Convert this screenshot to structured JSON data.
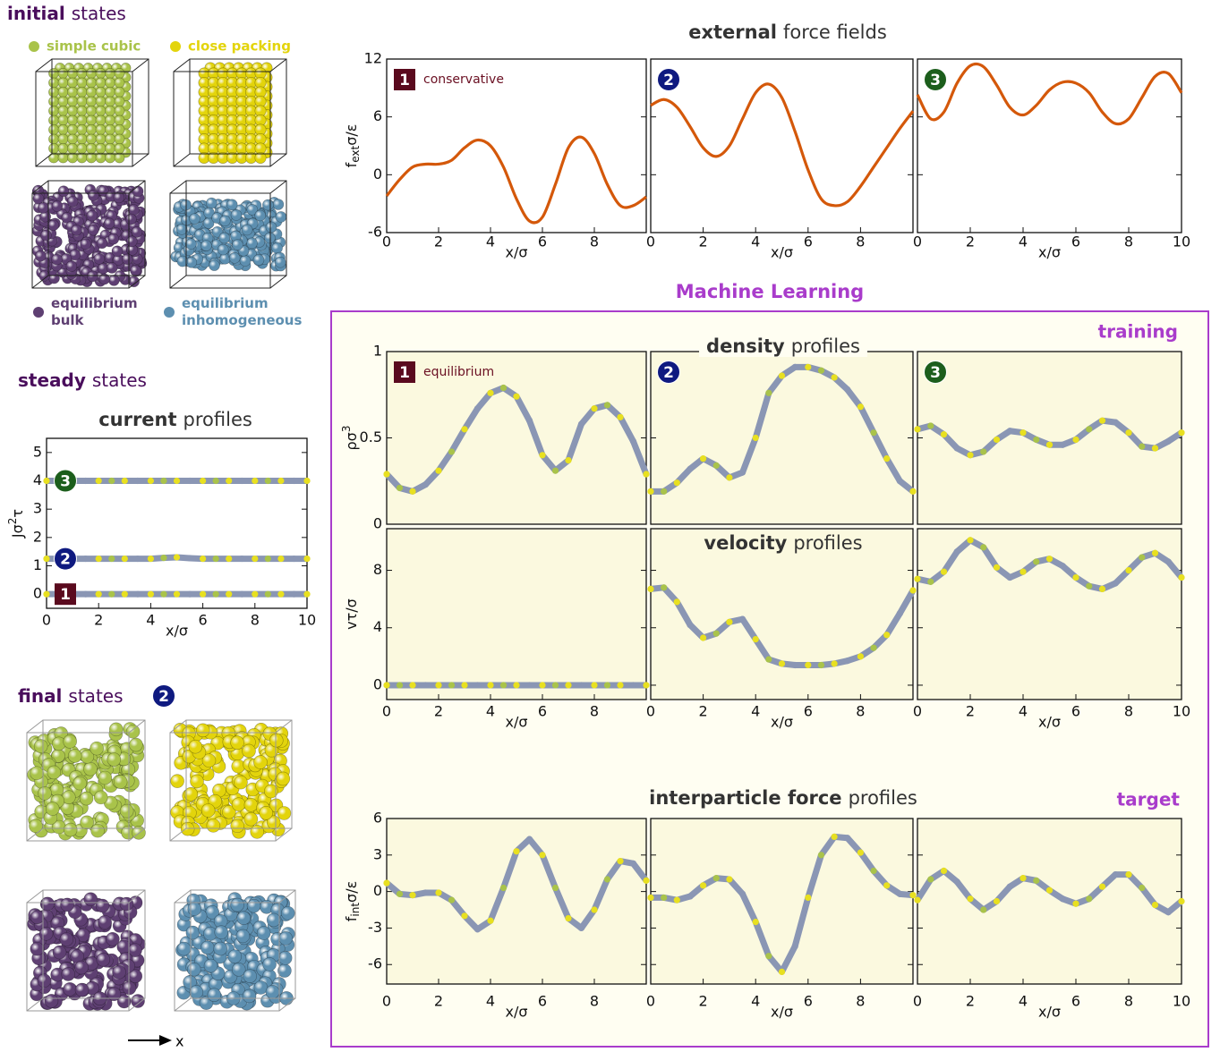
{
  "initial": {
    "title_bold": "initial",
    "title_rest": "states",
    "items": [
      {
        "label": [
          "simple cubic"
        ],
        "color": "#a9c34a"
      },
      {
        "label": [
          "close packing"
        ],
        "color": "#e3d40c"
      },
      {
        "label": [
          "equilibrium",
          "bulk"
        ],
        "color": "#5e3f72"
      },
      {
        "label": [
          "equilibrium",
          "inhomogeneous"
        ],
        "color": "#5d8fb0"
      }
    ]
  },
  "steady": {
    "title_bold": "steady",
    "title_rest": "states"
  },
  "final": {
    "title_bold": "final",
    "title_rest": "states",
    "badge": {
      "text": "2",
      "shape": "circle",
      "color": "#0f1a80"
    }
  },
  "axis_arrow": "x",
  "ml_box": {
    "title": "Machine Learning",
    "training": "training",
    "target": "target",
    "color": "#a93ccb"
  },
  "chart_data": [
    {
      "type": "line",
      "title_bold": "current",
      "title_rest": "profiles",
      "xlabel": "x/σ",
      "ylabel": [
        {
          "text": "Jσ"
        },
        {
          "text": "2",
          "shift": "super"
        },
        {
          "text": "τ"
        }
      ],
      "xlim": [
        0,
        10
      ],
      "ylim": [
        -0.5,
        5.5
      ],
      "yticks": [
        0,
        1,
        2,
        3,
        4,
        5
      ],
      "background": "#ffffff",
      "line_style": "dots",
      "chain_color": "#8a96b4",
      "dot_colors": [
        "#e8e020",
        "#a9c34a",
        "#e8e020",
        "#8a96b4"
      ],
      "x": [
        0,
        0.5,
        1,
        1.5,
        2,
        2.5,
        3,
        3.5,
        4,
        4.5,
        5,
        5.5,
        6,
        6.5,
        7,
        7.5,
        8,
        8.5,
        9,
        9.5,
        10
      ],
      "panels": [
        {
          "xticks": [
            0,
            2,
            4,
            6,
            8,
            10
          ],
          "series": [
            {
              "badge": {
                "text": "1",
                "shape": "square",
                "color": "#5a0a1e"
              },
              "values": [
                0,
                0,
                0,
                0,
                0,
                0,
                0,
                0,
                0,
                0,
                0,
                0,
                0,
                0,
                0,
                0,
                0,
                0,
                0,
                0,
                0
              ]
            },
            {
              "badge": {
                "text": "2",
                "shape": "circle",
                "color": "#0f1a80"
              },
              "values": [
                1.25,
                1.25,
                1.25,
                1.25,
                1.25,
                1.25,
                1.25,
                1.25,
                1.25,
                1.28,
                1.3,
                1.27,
                1.25,
                1.25,
                1.25,
                1.25,
                1.25,
                1.25,
                1.25,
                1.25,
                1.25
              ]
            },
            {
              "badge": {
                "text": "3",
                "shape": "circle",
                "color": "#1c5e1c"
              },
              "values": [
                4,
                4,
                4,
                4,
                4,
                4,
                4,
                4,
                4,
                4,
                4,
                4,
                4,
                4,
                4,
                4,
                4,
                4,
                4,
                4,
                4
              ]
            }
          ]
        }
      ]
    },
    {
      "type": "line",
      "title_bold": "external",
      "title_rest": "force fields",
      "xlabel": "x/σ",
      "ylabel": [
        {
          "text": "f"
        },
        {
          "text": "ext",
          "shift": "sub"
        },
        {
          "text": "σ/ε"
        }
      ],
      "xlim": [
        0,
        10
      ],
      "ylim": [
        -6,
        12
      ],
      "yticks": [
        -6,
        0,
        6,
        12
      ],
      "background": "#ffffff",
      "line_style": "solid",
      "color": "#d4580a",
      "note_color": "#6a0f22",
      "x": [
        0,
        0.5,
        1,
        1.5,
        2,
        2.5,
        3,
        3.5,
        4,
        4.5,
        5,
        5.5,
        6,
        6.5,
        7,
        7.5,
        8,
        8.5,
        9,
        9.5,
        10
      ],
      "panels": [
        {
          "badge": {
            "text": "1",
            "shape": "square",
            "color": "#5a0a1e"
          },
          "note": "conservative",
          "xticks": [
            0,
            2,
            4,
            6,
            8
          ],
          "series": [
            {
              "values": [
                -2.2,
                -0.5,
                0.8,
                1.1,
                1.1,
                1.5,
                2.8,
                3.6,
                3.0,
                0.8,
                -2.5,
                -4.8,
                -4.4,
                -1.0,
                2.8,
                3.9,
                2.2,
                -1.0,
                -3.2,
                -3.2,
                -2.3
              ]
            }
          ]
        },
        {
          "badge": {
            "text": "2",
            "shape": "circle",
            "color": "#0f1a80"
          },
          "xticks": [
            0,
            2,
            4,
            6,
            8
          ],
          "series": [
            {
              "values": [
                7.2,
                7.8,
                7.0,
                5.0,
                2.8,
                1.9,
                3.0,
                5.8,
                8.5,
                9.4,
                8.0,
                4.5,
                0.5,
                -2.5,
                -3.2,
                -2.8,
                -1.2,
                0.8,
                2.8,
                4.8,
                6.6
              ]
            }
          ]
        },
        {
          "badge": {
            "text": "3",
            "shape": "circle",
            "color": "#1c5e1c"
          },
          "xticks": [
            0,
            2,
            4,
            6,
            8,
            10
          ],
          "series": [
            {
              "values": [
                8.3,
                5.8,
                6.5,
                9.5,
                11.3,
                11.2,
                9.3,
                7.0,
                6.2,
                7.2,
                8.8,
                9.6,
                9.5,
                8.5,
                6.5,
                5.3,
                5.8,
                8.0,
                10.2,
                10.5,
                8.5
              ]
            }
          ]
        }
      ]
    },
    {
      "type": "line",
      "title_bold": "density",
      "title_rest": "profiles",
      "ylabel": [
        {
          "text": "ρσ"
        },
        {
          "text": "3",
          "shift": "super"
        }
      ],
      "xlim": [
        0,
        10
      ],
      "ylim": [
        0,
        1
      ],
      "yticks": [
        0,
        0.5,
        1
      ],
      "background": "#fbf9df",
      "line_style": "dots",
      "chain_color": "#8a96b4",
      "dot_colors": [
        "#e8e020",
        "#a9c34a",
        "#e8e020",
        "#8a96b4"
      ],
      "note_color": "#6a0f22",
      "x": [
        0,
        0.5,
        1,
        1.5,
        2,
        2.5,
        3,
        3.5,
        4,
        4.5,
        5,
        5.5,
        6,
        6.5,
        7,
        7.5,
        8,
        8.5,
        9,
        9.5,
        10
      ],
      "panels": [
        {
          "badge": {
            "text": "1",
            "shape": "square",
            "color": "#5a0a1e"
          },
          "note": "equilibrium",
          "series": [
            {
              "values": [
                0.29,
                0.21,
                0.19,
                0.23,
                0.31,
                0.42,
                0.55,
                0.67,
                0.76,
                0.79,
                0.74,
                0.6,
                0.4,
                0.31,
                0.37,
                0.58,
                0.67,
                0.69,
                0.62,
                0.48,
                0.29
              ]
            }
          ]
        },
        {
          "badge": {
            "text": "2",
            "shape": "circle",
            "color": "#0f1a80"
          },
          "series": [
            {
              "values": [
                0.19,
                0.19,
                0.24,
                0.32,
                0.38,
                0.34,
                0.27,
                0.3,
                0.5,
                0.76,
                0.86,
                0.91,
                0.91,
                0.89,
                0.85,
                0.78,
                0.68,
                0.53,
                0.38,
                0.25,
                0.19
              ]
            }
          ]
        },
        {
          "badge": {
            "text": "3",
            "shape": "circle",
            "color": "#1c5e1c"
          },
          "series": [
            {
              "values": [
                0.55,
                0.57,
                0.52,
                0.44,
                0.4,
                0.42,
                0.49,
                0.54,
                0.53,
                0.49,
                0.46,
                0.46,
                0.49,
                0.55,
                0.6,
                0.59,
                0.53,
                0.45,
                0.44,
                0.48,
                0.53
              ]
            }
          ]
        }
      ]
    },
    {
      "type": "line",
      "title_bold": "velocity",
      "title_rest": "profiles",
      "xlabel": "x/σ",
      "ylabel": [
        {
          "text": "vτ/σ"
        }
      ],
      "xlim": [
        0,
        10
      ],
      "ylim": [
        -1,
        10.9
      ],
      "yticks": [
        0,
        4,
        8
      ],
      "background": "#fbf9df",
      "line_style": "dots",
      "chain_color": "#8a96b4",
      "dot_colors": [
        "#e8e020",
        "#a9c34a",
        "#e8e020",
        "#8a96b4"
      ],
      "x": [
        0,
        0.5,
        1,
        1.5,
        2,
        2.5,
        3,
        3.5,
        4,
        4.5,
        5,
        5.5,
        6,
        6.5,
        7,
        7.5,
        8,
        8.5,
        9,
        9.5,
        10
      ],
      "panels": [
        {
          "xticks": [
            0,
            2,
            4,
            6,
            8
          ],
          "series": [
            {
              "values": [
                0,
                0,
                0,
                0,
                0,
                0,
                0,
                0,
                0,
                0,
                0,
                0,
                0,
                0,
                0,
                0,
                0,
                0,
                0,
                0,
                0
              ]
            }
          ]
        },
        {
          "xticks": [
            0,
            2,
            4,
            6,
            8
          ],
          "series": [
            {
              "values": [
                6.7,
                6.8,
                5.8,
                4.2,
                3.3,
                3.6,
                4.4,
                4.6,
                3.2,
                1.8,
                1.5,
                1.4,
                1.4,
                1.4,
                1.5,
                1.7,
                2.0,
                2.6,
                3.5,
                5.0,
                6.6
              ]
            }
          ]
        },
        {
          "xticks": [
            0,
            2,
            4,
            6,
            8,
            10
          ],
          "series": [
            {
              "values": [
                7.4,
                7.2,
                7.9,
                9.3,
                10.1,
                9.6,
                8.2,
                7.5,
                7.9,
                8.6,
                8.8,
                8.3,
                7.5,
                6.9,
                6.7,
                7.1,
                8.0,
                8.9,
                9.2,
                8.6,
                7.5
              ]
            }
          ]
        }
      ]
    },
    {
      "type": "line",
      "title_bold": "interparticle force",
      "title_rest": "profiles",
      "xlabel": "x/σ",
      "ylabel": [
        {
          "text": "f"
        },
        {
          "text": "int",
          "shift": "sub"
        },
        {
          "text": "σ/ε"
        }
      ],
      "xlim": [
        0,
        10
      ],
      "ylim": [
        -7.6,
        6
      ],
      "yticks": [
        -6,
        -3,
        0,
        3,
        6
      ],
      "background": "#fbf9df",
      "line_style": "dots",
      "chain_color": "#8a96b4",
      "dot_colors": [
        "#e8e020",
        "#a9c34a",
        "#e8e020",
        "#8a96b4"
      ],
      "x": [
        0,
        0.5,
        1,
        1.5,
        2,
        2.5,
        3,
        3.5,
        4,
        4.5,
        5,
        5.5,
        6,
        6.5,
        7,
        7.5,
        8,
        8.5,
        9,
        9.5,
        10
      ],
      "panels": [
        {
          "xticks": [
            0,
            2,
            4,
            6,
            8
          ],
          "series": [
            {
              "values": [
                0.7,
                -0.2,
                -0.3,
                -0.1,
                -0.1,
                -0.7,
                -2.0,
                -3.1,
                -2.4,
                0.3,
                3.3,
                4.3,
                3.0,
                0.3,
                -2.2,
                -3.0,
                -1.5,
                1.0,
                2.5,
                2.3,
                0.9
              ]
            }
          ]
        },
        {
          "xticks": [
            0,
            2,
            4,
            6,
            8
          ],
          "series": [
            {
              "values": [
                -0.5,
                -0.5,
                -0.7,
                -0.4,
                0.5,
                1.1,
                1.0,
                -0.2,
                -2.5,
                -5.3,
                -6.6,
                -4.5,
                -0.5,
                3.0,
                4.5,
                4.4,
                3.2,
                1.7,
                0.5,
                -0.2,
                -0.3
              ]
            }
          ]
        },
        {
          "xticks": [
            0,
            2,
            4,
            6,
            8,
            10
          ],
          "series": [
            {
              "values": [
                -0.7,
                1.0,
                1.7,
                0.8,
                -0.6,
                -1.5,
                -0.8,
                0.4,
                1.1,
                0.9,
                0.1,
                -0.6,
                -1.0,
                -0.6,
                0.4,
                1.4,
                1.4,
                0.3,
                -1.1,
                -1.7,
                -0.8
              ]
            }
          ]
        }
      ]
    }
  ]
}
